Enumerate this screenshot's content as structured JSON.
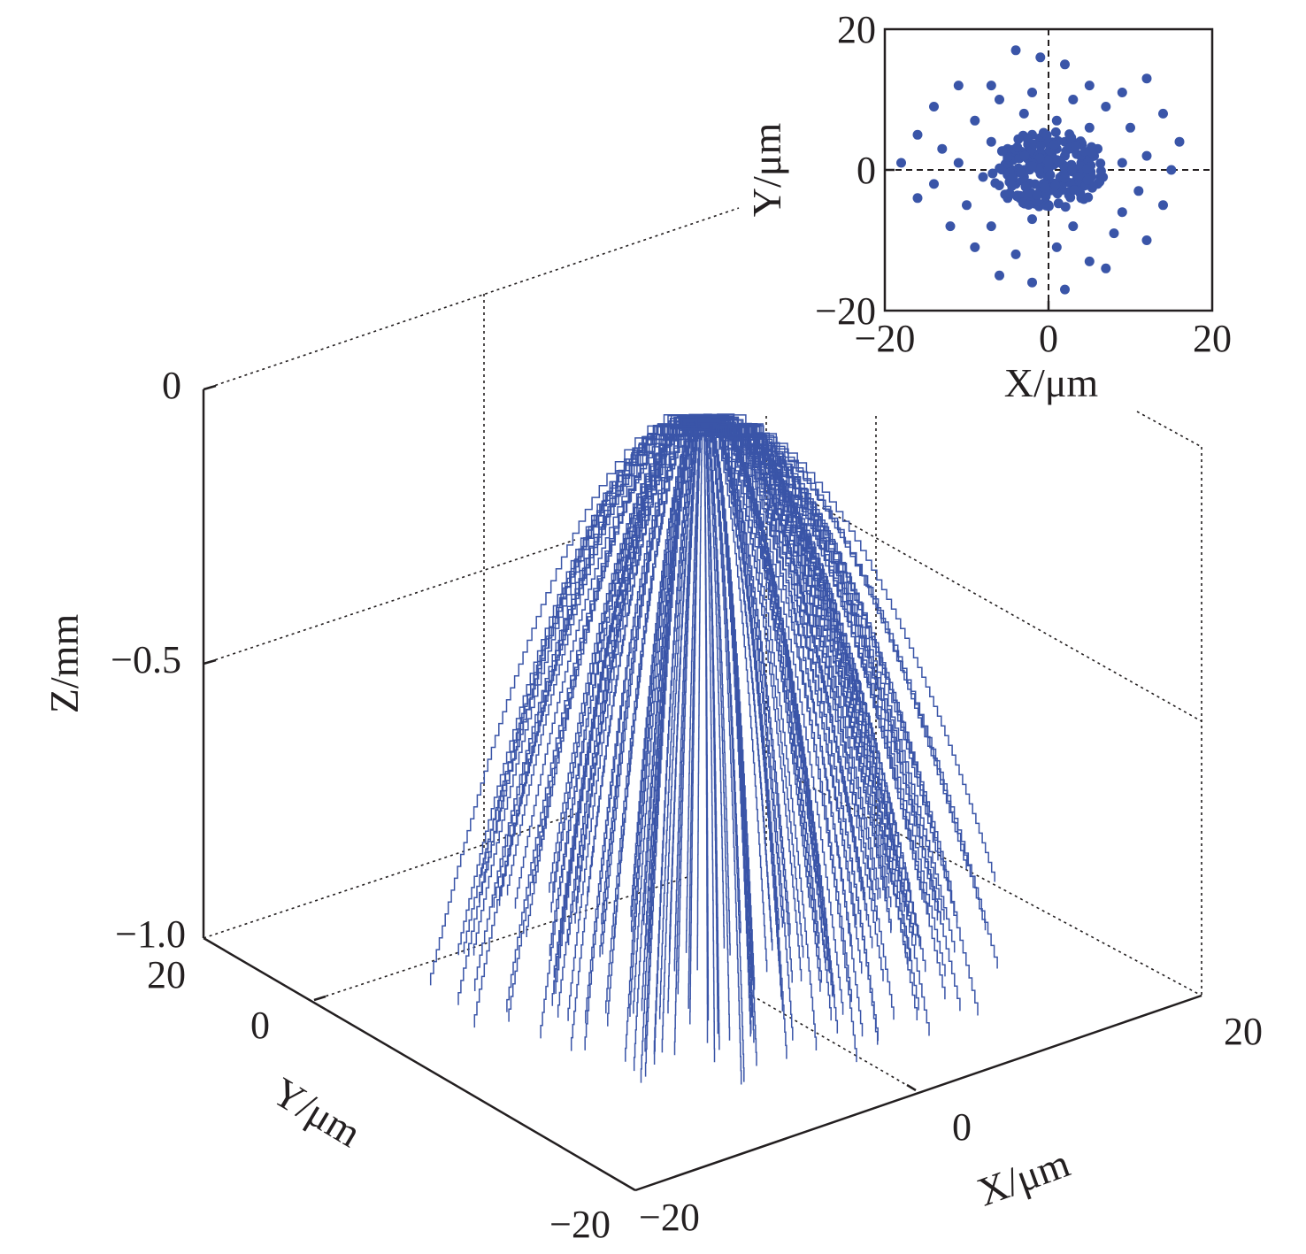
{
  "colors": {
    "series": "#3a55a8",
    "axis": "#231f20"
  },
  "chart_data": [
    {
      "type": "line",
      "subtype": "3d-trajectories",
      "title": "",
      "xlabel": "X/μm",
      "ylabel": "Y/μm",
      "zlabel": "Z/mm",
      "xlim": [
        -20,
        20
      ],
      "ylim": [
        -20,
        20
      ],
      "zlim": [
        -1.0,
        0
      ],
      "x_ticks": [
        "−20",
        "0",
        "20"
      ],
      "y_ticks": [
        "−20",
        "0",
        "20"
      ],
      "z_ticks": [
        "0",
        "−0.5",
        "−1.0"
      ],
      "grid": true,
      "series": [
        {
          "values_description_note": null,
          "trajectories": [
            {
              "start": [
                0,
                0,
                0
              ],
              "end": [
                -18,
                10,
                -1.0
              ]
            },
            {
              "start": [
                0,
                0,
                0
              ],
              "end": [
                -15,
                -4,
                -1.0
              ]
            },
            {
              "start": [
                0,
                0,
                0
              ],
              "end": [
                -12,
                -8,
                -1.0
              ]
            },
            {
              "start": [
                0,
                0,
                0
              ],
              "end": [
                -8,
                -12,
                -1.0
              ]
            },
            {
              "start": [
                0,
                0,
                0
              ],
              "end": [
                -4,
                -14,
                -1.0
              ]
            },
            {
              "start": [
                0,
                0,
                0
              ],
              "end": [
                0,
                -16,
                -1.0
              ]
            },
            {
              "start": [
                0,
                0,
                0
              ],
              "end": [
                4,
                -15,
                -1.0
              ]
            },
            {
              "start": [
                0,
                0,
                0
              ],
              "end": [
                8,
                -12,
                -1.0
              ]
            },
            {
              "start": [
                0,
                0,
                0
              ],
              "end": [
                12,
                -6,
                -1.0
              ]
            },
            {
              "start": [
                0,
                0,
                0
              ],
              "end": [
                15,
                2,
                -1.0
              ]
            },
            {
              "start": [
                0,
                0,
                0
              ],
              "end": [
                16,
                8,
                -1.0
              ]
            },
            {
              "start": [
                0,
                0,
                0
              ],
              "end": [
                10,
                14,
                -1.0
              ]
            },
            {
              "start": [
                0,
                0,
                0
              ],
              "end": [
                2,
                16,
                -1.0
              ]
            },
            {
              "start": [
                0,
                0,
                0
              ],
              "end": [
                -6,
                14,
                -1.0
              ]
            },
            {
              "start": [
                0,
                0,
                0
              ],
              "end": [
                -12,
                12,
                -1.0
              ]
            }
          ]
        }
      ]
    },
    {
      "type": "scatter",
      "title": "",
      "xlabel": "X/μm",
      "ylabel": "Y/μm",
      "xlim": [
        -20,
        20
      ],
      "ylim": [
        -20,
        20
      ],
      "x_ticks": [
        "−20",
        "0",
        "20"
      ],
      "y_ticks": [
        "20",
        "0",
        "−20"
      ],
      "reference_lines": "dashed lines at x=0 and y=0",
      "points": [
        [
          -4,
          17
        ],
        [
          -1,
          16
        ],
        [
          2,
          15
        ],
        [
          -11,
          12
        ],
        [
          12,
          13
        ],
        [
          -7,
          12
        ],
        [
          5,
          12
        ],
        [
          9,
          11
        ],
        [
          -14,
          9
        ],
        [
          -6,
          10
        ],
        [
          -2,
          11
        ],
        [
          3,
          10
        ],
        [
          7,
          9
        ],
        [
          14,
          8
        ],
        [
          -16,
          5
        ],
        [
          -9,
          7
        ],
        [
          -3,
          8
        ],
        [
          1,
          7
        ],
        [
          5,
          6
        ],
        [
          10,
          6
        ],
        [
          16,
          4
        ],
        [
          -13,
          3
        ],
        [
          -7,
          4
        ],
        [
          -2,
          5
        ],
        [
          2,
          4
        ],
        [
          6,
          3
        ],
        [
          12,
          2
        ],
        [
          -18,
          1
        ],
        [
          -11,
          1
        ],
        [
          -5,
          1
        ],
        [
          0,
          2
        ],
        [
          4,
          1
        ],
        [
          9,
          1
        ],
        [
          15,
          0
        ],
        [
          -14,
          -2
        ],
        [
          -8,
          -1
        ],
        [
          -3,
          -1
        ],
        [
          1,
          -2
        ],
        [
          6,
          -2
        ],
        [
          11,
          -3
        ],
        [
          -16,
          -4
        ],
        [
          -10,
          -5
        ],
        [
          -5,
          -4
        ],
        [
          0,
          -5
        ],
        [
          4,
          -4
        ],
        [
          9,
          -6
        ],
        [
          14,
          -5
        ],
        [
          -12,
          -8
        ],
        [
          -7,
          -8
        ],
        [
          -2,
          -7
        ],
        [
          3,
          -8
        ],
        [
          8,
          -9
        ],
        [
          12,
          -10
        ],
        [
          -9,
          -11
        ],
        [
          -4,
          -12
        ],
        [
          1,
          -11
        ],
        [
          5,
          -13
        ],
        [
          -6,
          -15
        ],
        [
          -2,
          -16
        ],
        [
          2,
          -17
        ],
        [
          7,
          -14
        ],
        [
          -1,
          0
        ],
        [
          1,
          1
        ],
        [
          0,
          -1
        ],
        [
          2,
          -1
        ],
        [
          -2,
          2
        ],
        [
          1,
          3
        ],
        [
          -3,
          0
        ],
        [
          3,
          0
        ],
        [
          -1,
          -3
        ],
        [
          2,
          2
        ],
        [
          0,
          4
        ],
        [
          -4,
          -2
        ],
        [
          4,
          -1
        ],
        [
          -2,
          -4
        ],
        [
          3,
          3
        ],
        [
          -5,
          3
        ]
      ]
    }
  ]
}
